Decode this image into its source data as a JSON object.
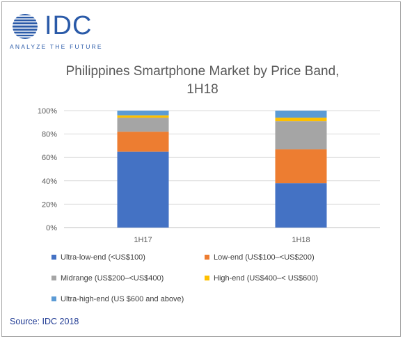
{
  "logo": {
    "name": "IDC",
    "tagline": "ANALYZE THE FUTURE"
  },
  "title_line1": "Philippines Smartphone Market by Price Band,",
  "title_line2": "1H18",
  "source": "Source: IDC 2018",
  "colors": {
    "ultra_low": "#4472c4",
    "low": "#ed7d31",
    "mid": "#a5a5a5",
    "high": "#ffc000",
    "ultra_high": "#5b9bd5",
    "grid": "#d9d9d9",
    "axis_text": "#595959"
  },
  "chart_data": {
    "type": "bar",
    "stacked": true,
    "categories": [
      "1H17",
      "1H18"
    ],
    "series": [
      {
        "name": "Ultra-low-end (<US$100)",
        "color": "#4472c4",
        "values": [
          65,
          38
        ]
      },
      {
        "name": "Low-end (US$100–<US$200)",
        "color": "#ed7d31",
        "values": [
          17,
          29
        ]
      },
      {
        "name": "Midrange (US$200–<US$400)",
        "color": "#a5a5a5",
        "values": [
          12,
          24
        ]
      },
      {
        "name": "High-end (US$400–< US$600)",
        "color": "#ffc000",
        "values": [
          2,
          3
        ]
      },
      {
        "name": "Ultra-high-end (US $600 and above)",
        "color": "#5b9bd5",
        "values": [
          4,
          6
        ]
      }
    ],
    "ylim": [
      0,
      100
    ],
    "yticks": [
      "0%",
      "20%",
      "40%",
      "60%",
      "80%",
      "100%"
    ],
    "grid": true,
    "legend": "bottom"
  }
}
